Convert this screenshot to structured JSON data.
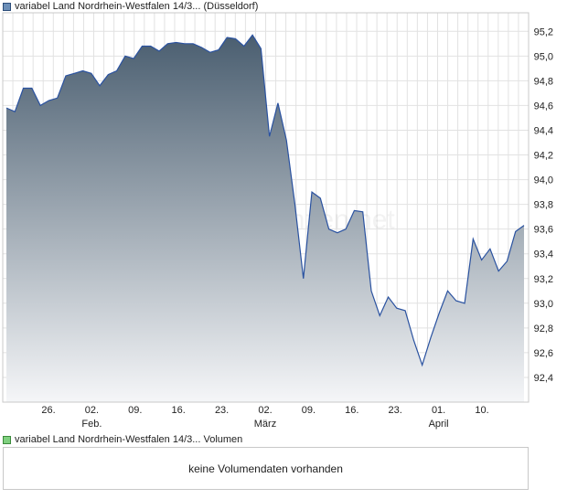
{
  "price_legend": "variabel Land Nordrhein-Westfalen 14/3... (Düsseldorf)",
  "volume_legend": "variabel Land Nordrhein-Westfalen 14/3... Volumen",
  "volume_message": "keine Volumendaten vorhanden",
  "watermark": "finanzen.net",
  "colors": {
    "line": "#2a52a0",
    "fill_top": "#4a5e70",
    "fill_bottom": "#f5f6f8",
    "grid": "#e2e2e2",
    "border": "#c8c8c8"
  },
  "chart_data": {
    "type": "area",
    "ylim": [
      92.2,
      95.35
    ],
    "yticks": [
      "92,4",
      "92,6",
      "92,8",
      "93,0",
      "93,2",
      "93,4",
      "93,6",
      "93,8",
      "94,0",
      "94,2",
      "94,4",
      "94,6",
      "94,8",
      "95,0",
      "95,2"
    ],
    "ytick_values": [
      92.4,
      92.6,
      92.8,
      93.0,
      93.2,
      93.4,
      93.6,
      93.8,
      94.0,
      94.2,
      94.4,
      94.6,
      94.8,
      95.0,
      95.2
    ],
    "xticks": [
      {
        "day": "26.",
        "month": ""
      },
      {
        "day": "02.",
        "month": "Feb."
      },
      {
        "day": "09.",
        "month": ""
      },
      {
        "day": "16.",
        "month": ""
      },
      {
        "day": "23.",
        "month": ""
      },
      {
        "day": "02.",
        "month": "März"
      },
      {
        "day": "09.",
        "month": ""
      },
      {
        "day": "16.",
        "month": ""
      },
      {
        "day": "23.",
        "month": ""
      },
      {
        "day": "01.",
        "month": "April"
      },
      {
        "day": "10.",
        "month": ""
      }
    ],
    "series": [
      {
        "values": [
          94.58,
          94.55,
          94.74,
          94.74,
          94.6,
          94.64,
          94.66,
          94.84,
          94.86,
          94.88,
          94.86,
          94.76,
          94.85,
          94.88,
          95.0,
          94.98,
          95.08,
          95.08,
          95.04,
          95.1,
          95.11,
          95.1,
          95.1,
          95.07,
          95.03,
          95.05,
          95.15,
          95.14,
          95.08,
          95.17,
          95.06,
          94.35,
          94.62,
          94.32,
          93.8,
          93.2,
          93.9,
          93.85,
          93.6,
          93.57,
          93.6,
          93.75,
          93.74,
          93.1,
          92.9,
          93.05,
          92.96,
          92.94,
          92.7,
          92.5,
          92.72,
          92.92,
          93.1,
          93.02,
          93.0,
          93.52,
          93.35,
          93.44,
          93.26,
          93.34,
          93.58,
          93.63
        ]
      }
    ]
  }
}
